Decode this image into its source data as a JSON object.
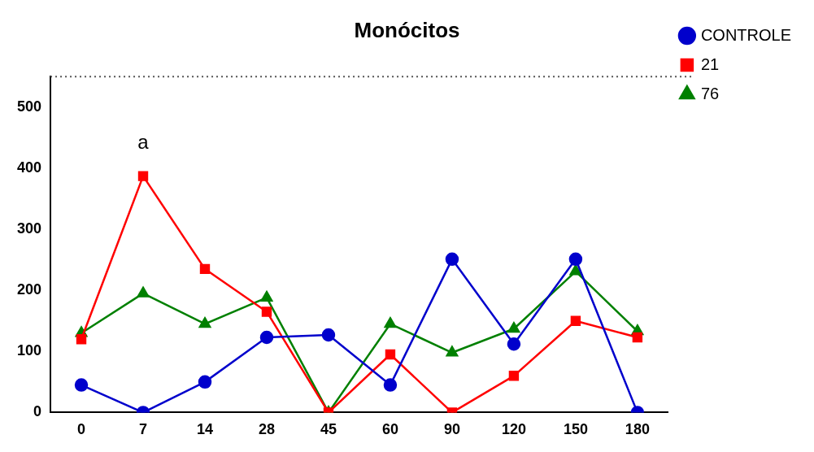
{
  "chart_data": {
    "type": "line",
    "title": "Monócitos",
    "categories": [
      "0",
      "7",
      "14",
      "28",
      "45",
      "60",
      "90",
      "120",
      "150",
      "180"
    ],
    "series": [
      {
        "name": "CONTROLE",
        "color": "#0000cc",
        "marker": "circle",
        "values": [
          45,
          0,
          50,
          123,
          127,
          45,
          251,
          112,
          251,
          0
        ]
      },
      {
        "name": "21",
        "color": "#ff0000",
        "marker": "square",
        "values": [
          120,
          387,
          235,
          165,
          0,
          95,
          0,
          60,
          150,
          123
        ]
      },
      {
        "name": "76",
        "color": "#008000",
        "marker": "triangle",
        "values": [
          130,
          195,
          145,
          188,
          0,
          145,
          98,
          137,
          231,
          133
        ]
      }
    ],
    "ylim": [
      0,
      550
    ],
    "yticks": [
      0,
      100,
      200,
      300,
      400,
      500
    ],
    "grid": false,
    "legend": "top right",
    "line_style": "solid",
    "ref_lines": [
      {
        "axis": "y",
        "value": 550,
        "line_style": "dotted",
        "color": "#555555"
      }
    ],
    "annotations": [
      "a"
    ]
  }
}
